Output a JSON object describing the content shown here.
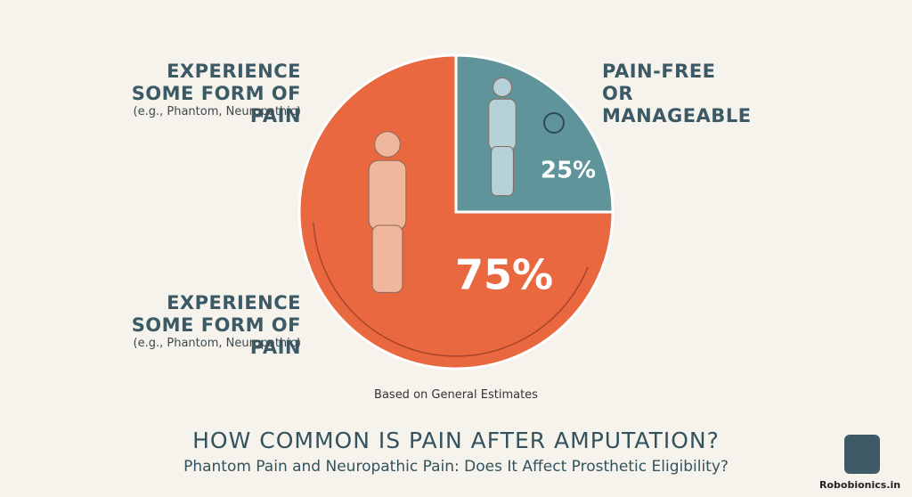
{
  "chart_data": {
    "type": "pie",
    "title": "HOW COMMON IS PAIN AFTER AMPUTATION?",
    "subtitle": "Phantom Pain and Neuropathic Pain: Does It Affect Prosthetic Eligibility?",
    "note": "Based on General Estimates",
    "categories": [
      "PAIN-FREE OR MANAGEABLE",
      "EXPERIENCE SOME FORM OF PAIN"
    ],
    "category_sublabels": [
      null,
      "(e.g., Phantom, Neuropathic)"
    ],
    "values": [
      25,
      75
    ],
    "value_labels": [
      "25%",
      "75%"
    ],
    "colors": [
      "#5f949b",
      "#e9683f"
    ],
    "annotations": [
      {
        "text": "EXPERIENCE SOME FORM OF PAIN",
        "subtext": "(e.g., Phantom, Neuropathic)"
      }
    ]
  },
  "brand": "Robobionics.in"
}
